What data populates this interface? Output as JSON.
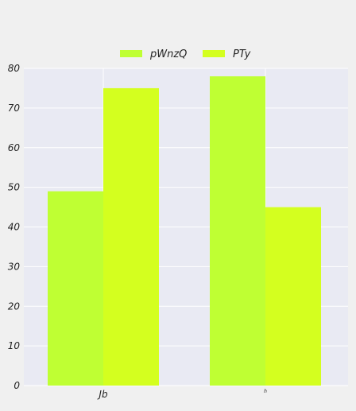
{
  "chart_data": {
    "type": "bar",
    "categories": [
      "Jb",
      "h"
    ],
    "series": [
      {
        "name": "pWnzQ",
        "values": [
          49,
          78
        ],
        "color": "#bfff33"
      },
      {
        "name": "PTy",
        "values": [
          75,
          45
        ],
        "color": "#d4ff1f"
      }
    ],
    "ylim": [
      0,
      80
    ],
    "yticks": [
      0,
      10,
      20,
      30,
      40,
      50,
      60,
      70,
      80
    ],
    "title": "",
    "xlabel": "",
    "ylabel": "",
    "grid": true,
    "legend_position": "top-center",
    "plot_background": "#e9eaf3",
    "grid_color": "#ffffff"
  }
}
